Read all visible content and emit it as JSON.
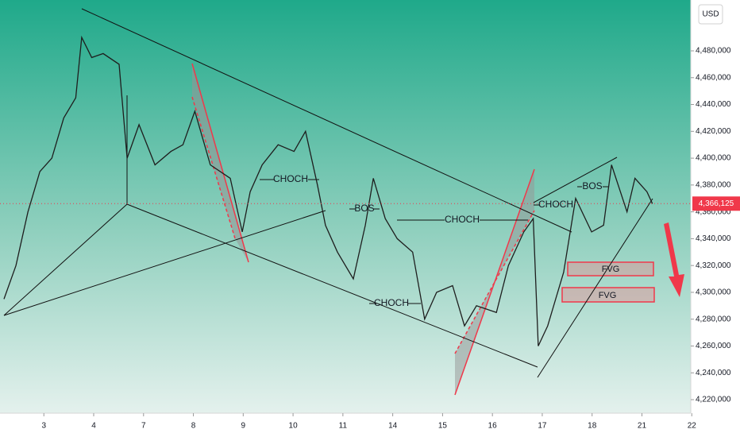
{
  "chart_data": {
    "type": "line",
    "currency": "USD",
    "xlim": [
      -0.88,
      12.98
    ],
    "xticks": [
      {
        "value": 0,
        "label": "3"
      },
      {
        "value": 1,
        "label": "4"
      },
      {
        "value": 2,
        "label": "7"
      },
      {
        "value": 3,
        "label": "8"
      },
      {
        "value": 4,
        "label": "9"
      },
      {
        "value": 5,
        "label": "10"
      },
      {
        "value": 6,
        "label": "11"
      },
      {
        "value": 7,
        "label": "14"
      },
      {
        "value": 8,
        "label": "15"
      },
      {
        "value": 9,
        "label": "16"
      },
      {
        "value": 10,
        "label": "17"
      },
      {
        "value": 11,
        "label": "18"
      },
      {
        "value": 12,
        "label": "21"
      },
      {
        "value": 13,
        "label": "22"
      }
    ],
    "ylim": [
      4209940,
      4517900
    ],
    "yticks": [
      {
        "value": 4220000,
        "label": "4,220,000"
      },
      {
        "value": 4240000,
        "label": "4,240,000"
      },
      {
        "value": 4260000,
        "label": "4,260,000"
      },
      {
        "value": 4280000,
        "label": "4,280,000"
      },
      {
        "value": 4300000,
        "label": "4,300,000"
      },
      {
        "value": 4320000,
        "label": "4,320,000"
      },
      {
        "value": 4340000,
        "label": "4,340,000"
      },
      {
        "value": 4360000,
        "label": "4,360,000"
      },
      {
        "value": 4380000,
        "label": "4,380,000"
      },
      {
        "value": 4400000,
        "label": "4,400,000"
      },
      {
        "value": 4420000,
        "label": "4,420,000"
      },
      {
        "value": 4440000,
        "label": "4,440,000"
      },
      {
        "value": 4460000,
        "label": "4,460,000"
      },
      {
        "value": 4480000,
        "label": "4,480,000"
      }
    ],
    "x": [
      -0.8,
      -0.56,
      -0.32,
      -0.08,
      0.16,
      0.4,
      0.64,
      0.76,
      0.96,
      1.19,
      1.51,
      1.67,
      1.91,
      2.23,
      2.55,
      2.79,
      3.03,
      3.34,
      3.74,
      3.98,
      4.14,
      4.38,
      4.7,
      5.02,
      5.25,
      5.49,
      5.65,
      5.89,
      6.21,
      6.45,
      6.61,
      6.85,
      7.09,
      7.4,
      7.64,
      7.88,
      8.2,
      8.44,
      8.68,
      9.08,
      9.32,
      9.63,
      9.82,
      9.92,
      10.11,
      10.43,
      10.67,
      10.99,
      11.23,
      11.39,
      11.7,
      11.86,
      12.1,
      12.21
    ],
    "values": [
      4295000,
      4320000,
      4360000,
      4390000,
      4400000,
      4430000,
      4445000,
      4490000,
      4475000,
      4478000,
      4470000,
      4400000,
      4425000,
      4395000,
      4405000,
      4410000,
      4435000,
      4395000,
      4385000,
      4345000,
      4375000,
      4395000,
      4410000,
      4405000,
      4420000,
      4380000,
      4350000,
      4330000,
      4310000,
      4350000,
      4385000,
      4355000,
      4340000,
      4330000,
      4280000,
      4300000,
      4305000,
      4275000,
      4290000,
      4285000,
      4320000,
      4345000,
      4355000,
      4260000,
      4275000,
      4315000,
      4370000,
      4345000,
      4350000,
      4395000,
      4360000,
      4385000,
      4375000,
      4366125
    ],
    "color": "#1e1e1e",
    "last_price": 4366125,
    "last_price_label": "4,366,125",
    "annotations": [
      "CHOCH",
      "BOS",
      "CHOCH",
      "CHOCH",
      "CHOCH",
      "BOS",
      "FVG",
      "FVG"
    ]
  }
}
